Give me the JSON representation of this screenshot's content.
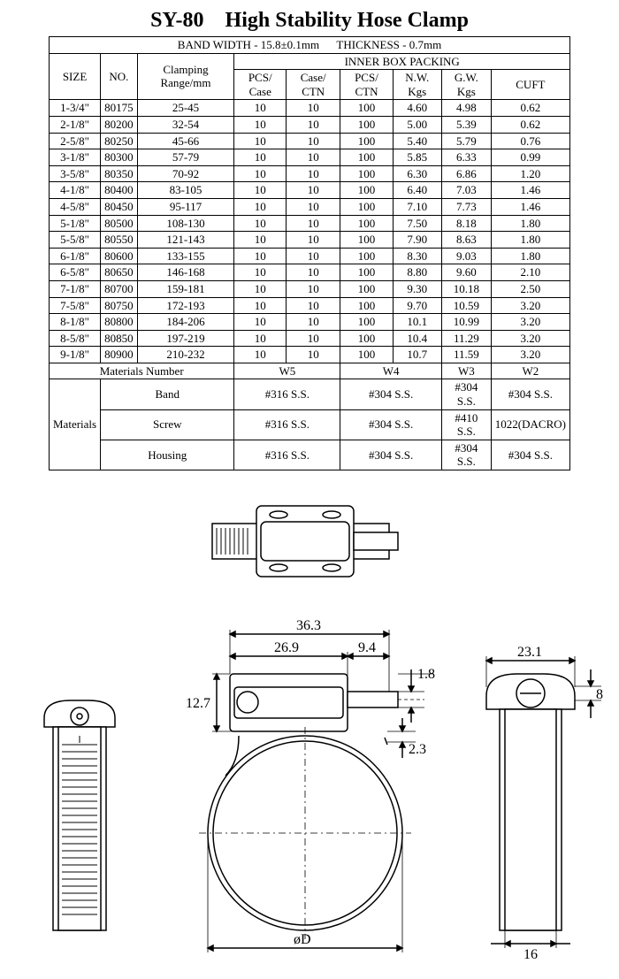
{
  "title": "SY-80 High Stability Hose Clamp",
  "bandwidth_label": "BAND WIDTH - 15.8±0.1mm",
  "thickness_label": "THICKNESS - 0.7mm",
  "headers": {
    "size": "SIZE",
    "no": "NO.",
    "range": "Clamping Range/mm",
    "packing": "INNER BOX PACKING",
    "pcs_case": "PCS/ Case",
    "case_ctn": "Case/ CTN",
    "pcs_ctn": "PCS/ CTN",
    "nw": "N.W. Kgs",
    "gw": "G.W. Kgs",
    "cuft": "CUFT"
  },
  "rows": [
    {
      "size": "1-3/4\"",
      "no": "80175",
      "range": "25-45",
      "pcs_case": "10",
      "case_ctn": "10",
      "pcs_ctn": "100",
      "nw": "4.60",
      "gw": "4.98",
      "cuft": "0.62"
    },
    {
      "size": "2-1/8\"",
      "no": "80200",
      "range": "32-54",
      "pcs_case": "10",
      "case_ctn": "10",
      "pcs_ctn": "100",
      "nw": "5.00",
      "gw": "5.39",
      "cuft": "0.62"
    },
    {
      "size": "2-5/8\"",
      "no": "80250",
      "range": "45-66",
      "pcs_case": "10",
      "case_ctn": "10",
      "pcs_ctn": "100",
      "nw": "5.40",
      "gw": "5.79",
      "cuft": "0.76"
    },
    {
      "size": "3-1/8\"",
      "no": "80300",
      "range": "57-79",
      "pcs_case": "10",
      "case_ctn": "10",
      "pcs_ctn": "100",
      "nw": "5.85",
      "gw": "6.33",
      "cuft": "0.99"
    },
    {
      "size": "3-5/8\"",
      "no": "80350",
      "range": "70-92",
      "pcs_case": "10",
      "case_ctn": "10",
      "pcs_ctn": "100",
      "nw": "6.30",
      "gw": "6.86",
      "cuft": "1.20"
    },
    {
      "size": "4-1/8\"",
      "no": "80400",
      "range": "83-105",
      "pcs_case": "10",
      "case_ctn": "10",
      "pcs_ctn": "100",
      "nw": "6.40",
      "gw": "7.03",
      "cuft": "1.46"
    },
    {
      "size": "4-5/8\"",
      "no": "80450",
      "range": "95-117",
      "pcs_case": "10",
      "case_ctn": "10",
      "pcs_ctn": "100",
      "nw": "7.10",
      "gw": "7.73",
      "cuft": "1.46"
    },
    {
      "size": "5-1/8\"",
      "no": "80500",
      "range": "108-130",
      "pcs_case": "10",
      "case_ctn": "10",
      "pcs_ctn": "100",
      "nw": "7.50",
      "gw": "8.18",
      "cuft": "1.80"
    },
    {
      "size": "5-5/8\"",
      "no": "80550",
      "range": "121-143",
      "pcs_case": "10",
      "case_ctn": "10",
      "pcs_ctn": "100",
      "nw": "7.90",
      "gw": "8.63",
      "cuft": "1.80"
    },
    {
      "size": "6-1/8\"",
      "no": "80600",
      "range": "133-155",
      "pcs_case": "10",
      "case_ctn": "10",
      "pcs_ctn": "100",
      "nw": "8.30",
      "gw": "9.03",
      "cuft": "1.80"
    },
    {
      "size": "6-5/8\"",
      "no": "80650",
      "range": "146-168",
      "pcs_case": "10",
      "case_ctn": "10",
      "pcs_ctn": "100",
      "nw": "8.80",
      "gw": "9.60",
      "cuft": "2.10"
    },
    {
      "size": "7-1/8\"",
      "no": "80700",
      "range": "159-181",
      "pcs_case": "10",
      "case_ctn": "10",
      "pcs_ctn": "100",
      "nw": "9.30",
      "gw": "10.18",
      "cuft": "2.50"
    },
    {
      "size": "7-5/8\"",
      "no": "80750",
      "range": "172-193",
      "pcs_case": "10",
      "case_ctn": "10",
      "pcs_ctn": "100",
      "nw": "9.70",
      "gw": "10.59",
      "cuft": "3.20"
    },
    {
      "size": "8-1/8\"",
      "no": "80800",
      "range": "184-206",
      "pcs_case": "10",
      "case_ctn": "10",
      "pcs_ctn": "100",
      "nw": "10.1",
      "gw": "10.99",
      "cuft": "3.20"
    },
    {
      "size": "8-5/8\"",
      "no": "80850",
      "range": "197-219",
      "pcs_case": "10",
      "case_ctn": "10",
      "pcs_ctn": "100",
      "nw": "10.4",
      "gw": "11.29",
      "cuft": "3.20"
    },
    {
      "size": "9-1/8\"",
      "no": "80900",
      "range": "210-232",
      "pcs_case": "10",
      "case_ctn": "10",
      "pcs_ctn": "100",
      "nw": "10.7",
      "gw": "11.59",
      "cuft": "3.20"
    }
  ],
  "materials_number_label": "Materials Number",
  "mat_cols": [
    "W5",
    "W4",
    "W3",
    "W2"
  ],
  "materials_label": "Materials",
  "mat_rows": [
    {
      "part": "Band",
      "vals": [
        "#316 S.S.",
        "#304 S.S.",
        "#304 S.S.",
        "#304 S.S."
      ]
    },
    {
      "part": "Screw",
      "vals": [
        "#316 S.S.",
        "#304 S.S.",
        "#410 S.S.",
        "1022(DACRO)"
      ]
    },
    {
      "part": "Housing",
      "vals": [
        "#316 S.S.",
        "#304 S.S.",
        "#304 S.S.",
        "#304 S.S."
      ]
    }
  ],
  "dims": {
    "d363": "36.3",
    "d269": "26.9",
    "d94": "9.4",
    "d18": "1.8",
    "d127": "12.7",
    "d23": "2.3",
    "d231": "23.1",
    "d8": "8",
    "d16": "16",
    "phiD": "øD"
  }
}
